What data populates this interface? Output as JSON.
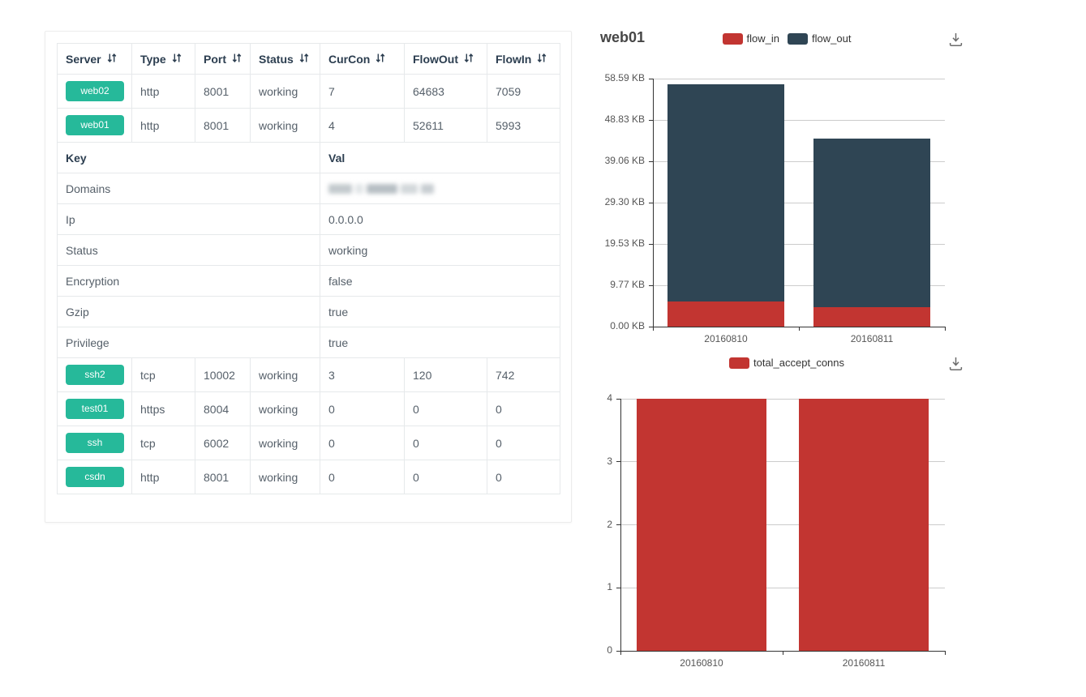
{
  "table": {
    "badge_color": "#26b99a",
    "columns": [
      {
        "label": "Server",
        "sortable": true
      },
      {
        "label": "Type",
        "sortable": true
      },
      {
        "label": "Port",
        "sortable": true
      },
      {
        "label": "Status",
        "sortable": true
      },
      {
        "label": "CurCon",
        "sortable": true
      },
      {
        "label": "FlowOut",
        "sortable": true
      },
      {
        "label": "FlowIn",
        "sortable": true
      }
    ],
    "rows_top": [
      {
        "server": "web02",
        "type": "http",
        "port": "8001",
        "status": "working",
        "curcon": "7",
        "flowout": "64683",
        "flowin": "7059"
      },
      {
        "server": "web01",
        "type": "http",
        "port": "8001",
        "status": "working",
        "curcon": "4",
        "flowout": "52611",
        "flowin": "5993"
      }
    ],
    "detail": {
      "key_header": "Key",
      "val_header": "Val",
      "rows": [
        {
          "key": "Domains",
          "value": "",
          "redacted": true
        },
        {
          "key": "Ip",
          "value": "0.0.0.0"
        },
        {
          "key": "Status",
          "value": "working"
        },
        {
          "key": "Encryption",
          "value": "false"
        },
        {
          "key": "Gzip",
          "value": "true"
        },
        {
          "key": "Privilege",
          "value": "true"
        }
      ]
    },
    "rows_bottom": [
      {
        "server": "ssh2",
        "type": "tcp",
        "port": "10002",
        "status": "working",
        "curcon": "3",
        "flowout": "120",
        "flowin": "742"
      },
      {
        "server": "test01",
        "type": "https",
        "port": "8004",
        "status": "working",
        "curcon": "0",
        "flowout": "0",
        "flowin": "0"
      },
      {
        "server": "ssh",
        "type": "tcp",
        "port": "6002",
        "status": "working",
        "curcon": "0",
        "flowout": "0",
        "flowin": "0"
      },
      {
        "server": "csdn",
        "type": "http",
        "port": "8001",
        "status": "working",
        "curcon": "0",
        "flowout": "0",
        "flowin": "0"
      }
    ]
  },
  "icons": {
    "sort": "sort-arrows",
    "download": "save-as-image-arrow"
  },
  "chart_data": [
    {
      "type": "bar",
      "stacked": true,
      "title": "web01",
      "categories": [
        "20160810",
        "20160811"
      ],
      "unit": "KB",
      "series": [
        {
          "name": "flow_in",
          "color": "#c23531",
          "values": [
            5.85,
            4.6
          ]
        },
        {
          "name": "flow_out",
          "color": "#2f4554",
          "values": [
            51.38,
            39.8
          ]
        }
      ],
      "ylim": [
        0,
        58.59
      ],
      "ytick_labels": [
        "0.00 KB",
        "9.77 KB",
        "19.53 KB",
        "29.30 KB",
        "39.06 KB",
        "48.83 KB",
        "58.59 KB"
      ],
      "legend_position": "top-center",
      "grid": true
    },
    {
      "type": "bar",
      "stacked": false,
      "title": "",
      "categories": [
        "20160810",
        "20160811"
      ],
      "unit": "conns",
      "series": [
        {
          "name": "total_accept_conns",
          "color": "#c23531",
          "values": [
            4,
            4
          ]
        }
      ],
      "ylim": [
        0,
        4
      ],
      "ytick_labels": [
        "0",
        "1",
        "2",
        "3",
        "4"
      ],
      "legend_position": "top-center",
      "grid": true
    }
  ]
}
